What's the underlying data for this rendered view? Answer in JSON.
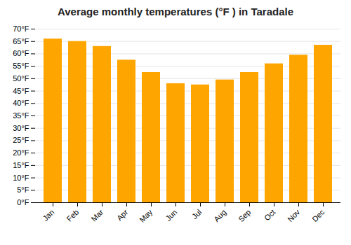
{
  "chart_data": {
    "type": "bar",
    "title": "Average monthly temperatures (°F ) in Taradale",
    "categories": [
      "Jan",
      "Feb",
      "Mar",
      "Apr",
      "May",
      "Jun",
      "Jul",
      "Aug",
      "Sep",
      "Oct",
      "Nov",
      "Dec"
    ],
    "values": [
      66,
      65,
      63,
      57.5,
      52.5,
      48,
      47.5,
      49.5,
      52.5,
      56,
      59.5,
      63.5
    ],
    "color": "#FFA500",
    "ylim": [
      0,
      70
    ],
    "yticks": [
      {
        "value": 0,
        "label": "0°F"
      },
      {
        "value": 5,
        "label": "5°F"
      },
      {
        "value": 10,
        "label": "10°F"
      },
      {
        "value": 15,
        "label": "15°F"
      },
      {
        "value": 20,
        "label": "20°F"
      },
      {
        "value": 25,
        "label": "25°F"
      },
      {
        "value": 30,
        "label": "30°F"
      },
      {
        "value": 35,
        "label": "35°F"
      },
      {
        "value": 40,
        "label": "40°F"
      },
      {
        "value": 45,
        "label": "45°F"
      },
      {
        "value": 50,
        "label": "50°F"
      },
      {
        "value": 55,
        "label": "55°F"
      },
      {
        "value": 60,
        "label": "60°F"
      },
      {
        "value": 65,
        "label": "65°F"
      },
      {
        "value": 70,
        "label": "70°F"
      }
    ],
    "grid": true
  }
}
